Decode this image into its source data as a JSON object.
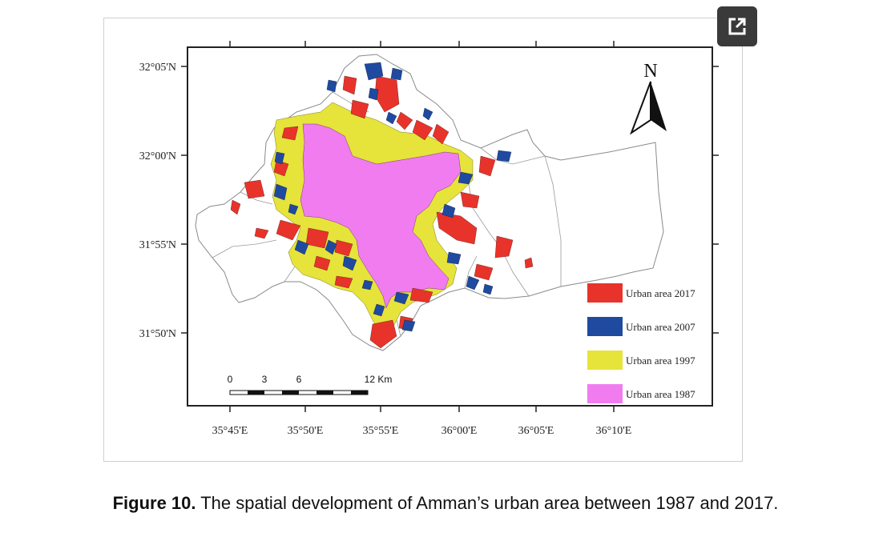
{
  "map": {
    "lat_labels": [
      "32°05'N",
      "32°00'N",
      "31°55'N",
      "31°50'N"
    ],
    "lon_labels": [
      "35°45'E",
      "35°50'E",
      "35°55'E",
      "36°00'E",
      "36°05'E",
      "36°10'E"
    ],
    "north_label": "N",
    "scale_bar": {
      "ticks": [
        "0",
        "3",
        "6",
        "12 Km"
      ]
    },
    "legend": [
      {
        "label": "Urban area 2017",
        "color": "#e8332a"
      },
      {
        "label": "Urban area 2007",
        "color": "#1f4aa0"
      },
      {
        "label": "Urban area 1997",
        "color": "#e6e33a"
      },
      {
        "label": "Urban area 1987",
        "color": "#f07cf0"
      }
    ]
  },
  "caption": {
    "label": "Figure 10.",
    "text": " The spatial development of Amman’s urban area between 1987 and 2017."
  }
}
